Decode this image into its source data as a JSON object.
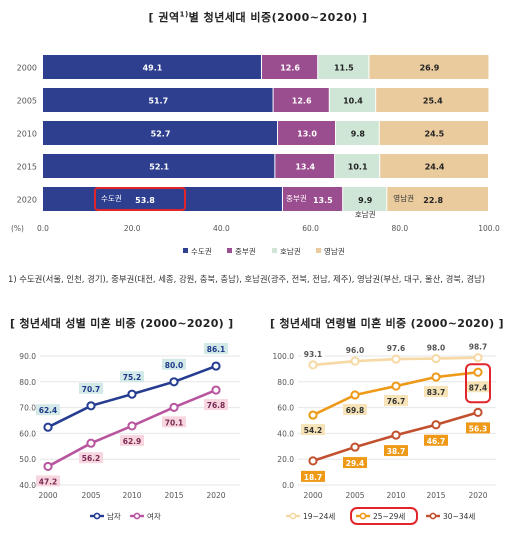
{
  "top_title_prefix": "[ 권역",
  "top_title_sup": "1)",
  "top_title_suffix": "별 청년세대 비중(2000~2020) ]",
  "footnote": "1) 수도권(서울, 인천, 경기), 중부권(대전, 세종, 강원, 충북, 충남), 호남권(광주, 전북, 전남, 제주), 영남권(부산, 대구, 울산, 경북, 경남)",
  "left_title": "[ 청년세대 성별 미혼 비중 (2000~2020) ]",
  "right_title": "[ 청년세대 연령별 미혼 비중 (2000~2020) ]",
  "colors": {
    "capital": "#2E3F8F",
    "central": "#9B4E8F",
    "honam": "#CFE6D6",
    "yeongnam": "#EACB9E",
    "male": "#253C91",
    "female": "#B8559E",
    "age19_24": "#F6D9A4",
    "age25_29": "#EE9A18",
    "age30_34": "#C2502E",
    "highlight": "#E0262B"
  },
  "chart_data": [
    {
      "type": "bar",
      "orientation": "horizontal",
      "stacked": true,
      "categories": [
        "2000",
        "2005",
        "2010",
        "2015",
        "2020"
      ],
      "series": [
        {
          "name": "수도권",
          "values": [
            49.1,
            51.7,
            52.7,
            52.1,
            53.8
          ]
        },
        {
          "name": "중부권",
          "values": [
            12.6,
            12.6,
            13.0,
            13.4,
            13.5
          ]
        },
        {
          "name": "호남권",
          "values": [
            11.5,
            10.4,
            9.8,
            10.1,
            9.9
          ]
        },
        {
          "name": "영남권",
          "values": [
            26.9,
            25.4,
            24.5,
            24.4,
            22.8
          ]
        }
      ],
      "xlim": [
        0,
        100
      ],
      "x_ticks": [
        "0.0",
        "20.0",
        "40.0",
        "60.0",
        "80.0",
        "100.0"
      ],
      "x_unit_label": "(%)",
      "legend_position": "bottom",
      "annotations_2020": [
        "수도권",
        "중부권",
        "호남권",
        "영남권"
      ]
    },
    {
      "type": "line",
      "categories": [
        "2000",
        "2005",
        "2010",
        "2015",
        "2020"
      ],
      "series": [
        {
          "name": "남자",
          "values": [
            62.4,
            70.7,
            75.2,
            80.0,
            86.1
          ]
        },
        {
          "name": "여자",
          "values": [
            47.2,
            56.2,
            62.9,
            70.1,
            76.8
          ]
        }
      ],
      "ylim": [
        40,
        90
      ],
      "y_ticks": [
        "90.0",
        "80.0",
        "70.0",
        "60.0",
        "50.0",
        "40.0"
      ],
      "legend_position": "bottom"
    },
    {
      "type": "line",
      "categories": [
        "2000",
        "2005",
        "2010",
        "2015",
        "2020"
      ],
      "series": [
        {
          "name": "19~24세",
          "values": [
            93.1,
            96.0,
            97.6,
            98.0,
            98.7
          ]
        },
        {
          "name": "25~29세",
          "values": [
            54.2,
            69.8,
            76.7,
            83.7,
            87.4
          ]
        },
        {
          "name": "30~34세",
          "values": [
            18.7,
            29.4,
            38.7,
            46.7,
            56.3
          ]
        }
      ],
      "ylim": [
        0,
        100
      ],
      "y_ticks": [
        "100.0",
        "80.0",
        "60.0",
        "40.0",
        "20.0",
        "0.0"
      ],
      "legend_position": "bottom"
    }
  ]
}
